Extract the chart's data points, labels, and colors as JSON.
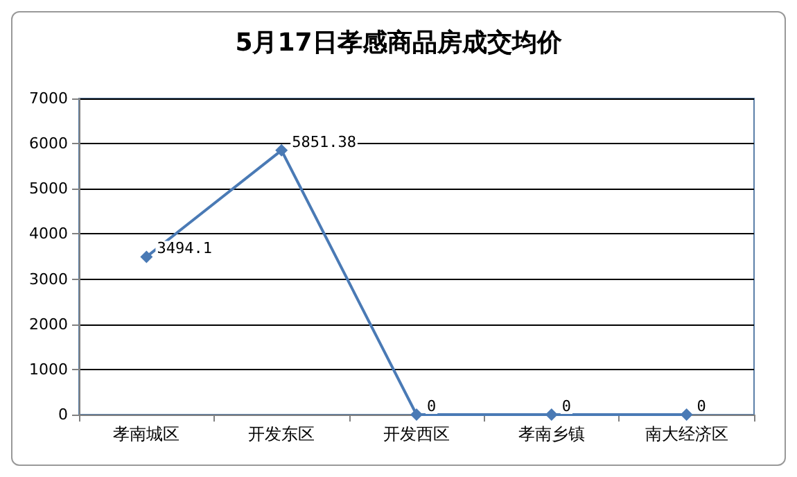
{
  "chart_data": {
    "type": "line",
    "title": "5月17日孝感商品房成交均价",
    "categories": [
      "孝南城区",
      "开发东区",
      "开发西区",
      "孝南乡镇",
      "南大经济区"
    ],
    "values": [
      3494.1,
      5851.38,
      0,
      0,
      0
    ],
    "color": "#4a7ab5",
    "ylim": [
      0,
      7000
    ],
    "yticks": [
      0,
      1000,
      2000,
      3000,
      4000,
      5000,
      6000,
      7000
    ],
    "grid": "y",
    "marker": "diamond",
    "line_style": "solid",
    "data_labels": true
  }
}
